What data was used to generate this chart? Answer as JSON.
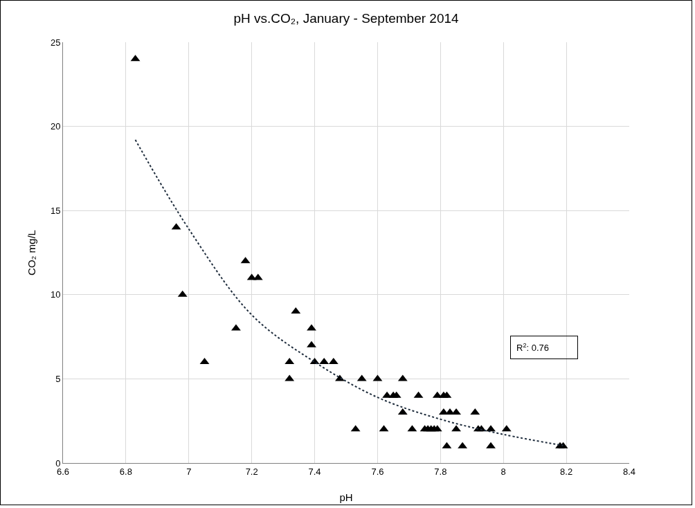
{
  "chart_data": {
    "type": "scatter",
    "title": "pH vs.CO₂, January - September 2014",
    "xlabel": "pH",
    "ylabel": "CO₂ mg/L",
    "xlim": [
      6.6,
      8.4
    ],
    "xticks": [
      6.6,
      6.8,
      7,
      7.2,
      7.4,
      7.6,
      7.8,
      8,
      8.2,
      8.4
    ],
    "ylim": [
      0,
      25
    ],
    "yticks": [
      0,
      5,
      10,
      15,
      20,
      25
    ],
    "grid": true,
    "marker": "triangle",
    "series": [
      {
        "color": "#000000",
        "x": [
          6.83,
          6.96,
          6.98,
          7.05,
          7.15,
          7.18,
          7.2,
          7.22,
          7.32,
          7.32,
          7.34,
          7.39,
          7.39,
          7.4,
          7.43,
          7.46,
          7.48,
          7.53,
          7.55,
          7.6,
          7.62,
          7.63,
          7.65,
          7.66,
          7.68,
          7.68,
          7.71,
          7.73,
          7.75,
          7.76,
          7.77,
          7.78,
          7.79,
          7.79,
          7.81,
          7.81,
          7.82,
          7.82,
          7.83,
          7.85,
          7.85,
          7.87,
          7.91,
          7.92,
          7.93,
          7.96,
          7.96,
          8.01,
          8.18,
          8.19
        ],
        "values": [
          24,
          14,
          10,
          6,
          8,
          12,
          11,
          11,
          6,
          5,
          9,
          8,
          7,
          6,
          6,
          6,
          5,
          2,
          5,
          5,
          2,
          4,
          4,
          4,
          5,
          3,
          2,
          4,
          2,
          2,
          2,
          2,
          4,
          2,
          4,
          3,
          4,
          1,
          3,
          3,
          2,
          1,
          3,
          2,
          2,
          2,
          1,
          2,
          1,
          1
        ]
      },
      {
        "type": "line",
        "color": "#1f2d3d",
        "line_style": "dotted",
        "marker": "none",
        "x": [
          6.83,
          7.0,
          7.2,
          7.4,
          7.6,
          7.8,
          8.0,
          8.19
        ],
        "values": [
          19.2,
          13.9,
          8.8,
          6.0,
          3.9,
          2.6,
          1.7,
          1.04
        ]
      }
    ],
    "annotations": [
      "R$^{2}$: 0.76"
    ]
  }
}
